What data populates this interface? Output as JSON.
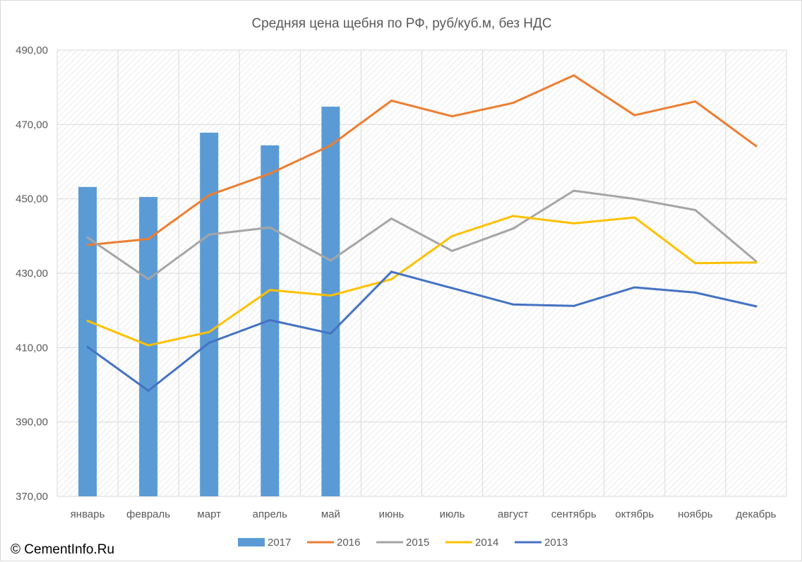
{
  "chart_data": {
    "type": "bar",
    "title": "Средняя цена щебня по РФ, руб/куб.м, без НДС",
    "xlabel": "",
    "ylabel": "",
    "categories": [
      "январь",
      "февраль",
      "март",
      "апрель",
      "май",
      "июнь",
      "июль",
      "август",
      "сентябрь",
      "октябрь",
      "ноябрь",
      "декабрь"
    ],
    "ylim": [
      370,
      490
    ],
    "yticks": [
      "370,00",
      "390,00",
      "410,00",
      "430,00",
      "450,00",
      "470,00",
      "490,00"
    ],
    "grid": true,
    "legend_position": "bottom",
    "series": [
      {
        "name": "2017",
        "kind": "bar",
        "color": "#5b9bd5",
        "values": [
          453.2,
          450.5,
          467.8,
          464.4,
          474.8,
          null,
          null,
          null,
          null,
          null,
          null,
          null
        ]
      },
      {
        "name": "2016",
        "kind": "line",
        "color": "#ed7d31",
        "values": [
          437.6,
          439.2,
          451.0,
          456.8,
          464.4,
          476.4,
          472.2,
          475.8,
          483.2,
          472.5,
          476.2,
          464.2
        ]
      },
      {
        "name": "2015",
        "kind": "line",
        "color": "#a5a5a5",
        "values": [
          439.6,
          428.4,
          440.4,
          442.3,
          433.4,
          444.7,
          436.0,
          442.0,
          452.2,
          450.0,
          447.0,
          433.2
        ]
      },
      {
        "name": "2014",
        "kind": "line",
        "color": "#ffc000",
        "values": [
          417.2,
          410.6,
          414.2,
          425.5,
          424.0,
          428.4,
          440.0,
          445.4,
          443.4,
          445.0,
          432.7,
          432.9
        ]
      },
      {
        "name": "2013",
        "kind": "line",
        "color": "#4472c4",
        "values": [
          410.2,
          398.4,
          411.3,
          417.4,
          413.8,
          430.4,
          426.0,
          421.6,
          421.2,
          426.2,
          424.8,
          421.1
        ]
      }
    ]
  },
  "credit": "© CementInfo.Ru"
}
